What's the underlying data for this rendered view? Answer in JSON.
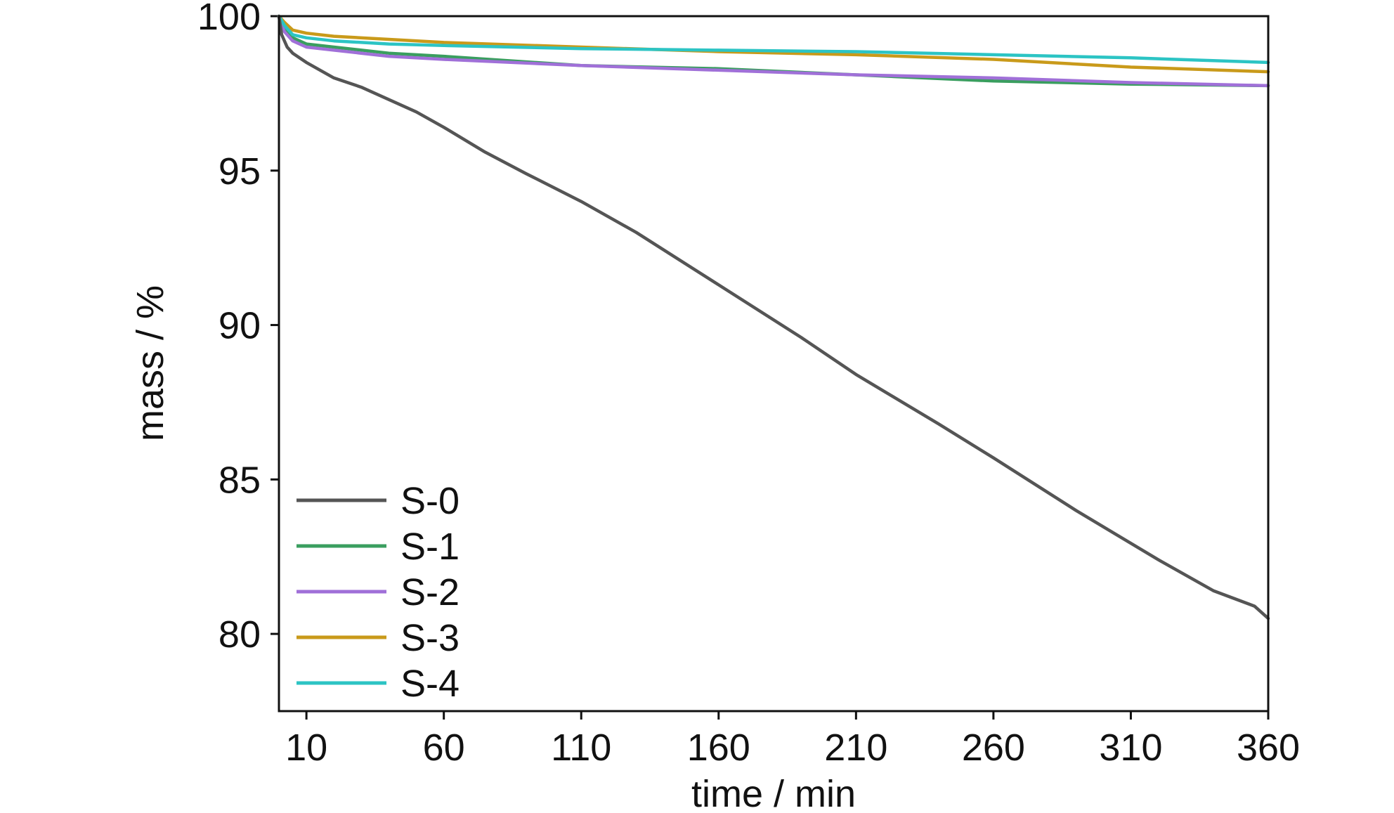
{
  "chart_data": {
    "type": "line",
    "title": "",
    "xlabel": "time / min",
    "ylabel": "mass / %",
    "xlim": [
      0,
      360
    ],
    "ylim": [
      77.5,
      100
    ],
    "x_ticks": [
      10,
      60,
      110,
      160,
      210,
      260,
      310,
      360
    ],
    "y_ticks": [
      80,
      85,
      90,
      95,
      100
    ],
    "grid": false,
    "legend_position": "bottom-left",
    "series": [
      {
        "name": "S-0",
        "color": "#555555",
        "x": [
          0,
          1,
          3,
          5,
          10,
          20,
          30,
          40,
          50,
          60,
          75,
          90,
          110,
          130,
          160,
          190,
          210,
          240,
          260,
          290,
          320,
          340,
          355,
          360
        ],
        "y": [
          100,
          99.4,
          99.0,
          98.8,
          98.5,
          98.0,
          97.7,
          97.3,
          96.9,
          96.4,
          95.6,
          94.9,
          94.0,
          93.0,
          91.3,
          89.6,
          88.4,
          86.8,
          85.7,
          84.0,
          82.4,
          81.4,
          80.9,
          80.5
        ]
      },
      {
        "name": "S-1",
        "color": "#3a9e5f",
        "x": [
          0,
          2,
          5,
          10,
          20,
          40,
          60,
          110,
          160,
          210,
          260,
          310,
          360
        ],
        "y": [
          100,
          99.6,
          99.3,
          99.1,
          99.0,
          98.8,
          98.7,
          98.4,
          98.3,
          98.1,
          97.9,
          97.8,
          97.75
        ]
      },
      {
        "name": "S-2",
        "color": "#a070d8",
        "x": [
          0,
          2,
          5,
          10,
          20,
          40,
          60,
          110,
          160,
          210,
          260,
          310,
          360
        ],
        "y": [
          100,
          99.5,
          99.2,
          99.0,
          98.9,
          98.7,
          98.6,
          98.4,
          98.25,
          98.1,
          98.0,
          97.85,
          97.75
        ]
      },
      {
        "name": "S-3",
        "color": "#c99a1a",
        "x": [
          0,
          2,
          5,
          10,
          20,
          40,
          60,
          110,
          160,
          210,
          260,
          310,
          360
        ],
        "y": [
          100,
          99.8,
          99.55,
          99.45,
          99.35,
          99.25,
          99.15,
          99.0,
          98.85,
          98.75,
          98.6,
          98.35,
          98.2
        ]
      },
      {
        "name": "S-4",
        "color": "#2cc4c4",
        "x": [
          0,
          2,
          5,
          10,
          20,
          40,
          60,
          110,
          160,
          210,
          260,
          310,
          360
        ],
        "y": [
          100,
          99.7,
          99.4,
          99.3,
          99.2,
          99.1,
          99.05,
          98.95,
          98.9,
          98.85,
          98.75,
          98.65,
          98.5
        ]
      }
    ]
  }
}
